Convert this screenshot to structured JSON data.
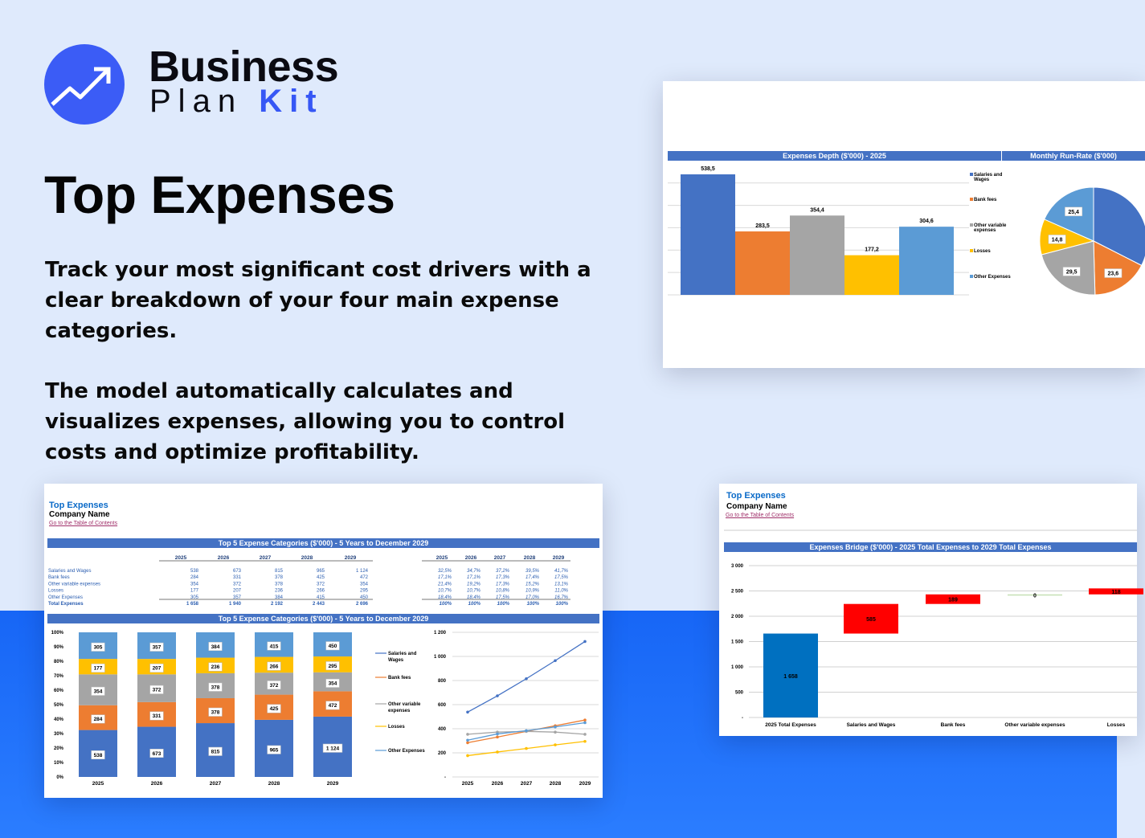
{
  "brand": {
    "line1": "Business",
    "plan": "Plan",
    "kit": "Kit",
    "logo_icon": "trend-arrow-icon",
    "logo_color": "#3b5cf6"
  },
  "hero": {
    "title": "Top Expenses",
    "paragraphs": [
      "Track your most significant cost drivers with a clear breakdown of your four main expense categories.",
      "The model automatically calculates and visualizes expenses, allowing you to control costs and optimize profitability."
    ]
  },
  "colors": {
    "salaries": "#4472c4",
    "bank": "#ed7d31",
    "other_var": "#a5a5a5",
    "losses": "#ffc000",
    "other_exp": "#5b9bd5",
    "header_bar": "#4472c4",
    "increase": "#ff0000",
    "total": "#0070c0",
    "zero": "#c6e0b4",
    "bg_top": "#dfeafc",
    "bg_bottom": "#1766f6"
  },
  "sheet": {
    "title": "Top Expenses",
    "company": "Company Name",
    "link": "Go to the Table of Contents"
  },
  "table": {
    "header": "Top 5 Expense Categories ($'000) - 5 Years to December 2029",
    "years": [
      "2025",
      "2026",
      "2027",
      "2028",
      "2029"
    ],
    "rows": [
      {
        "label": "Salaries and Wages",
        "values": [
          "538",
          "673",
          "815",
          "965",
          "1 124"
        ],
        "pct": [
          "32,5%",
          "34,7%",
          "37,2%",
          "39,5%",
          "41,7%"
        ]
      },
      {
        "label": "Bank fees",
        "values": [
          "284",
          "331",
          "378",
          "425",
          "472"
        ],
        "pct": [
          "17,1%",
          "17,1%",
          "17,3%",
          "17,4%",
          "17,5%"
        ]
      },
      {
        "label": "Other variable expenses",
        "values": [
          "354",
          "372",
          "378",
          "372",
          "354"
        ],
        "pct": [
          "21,4%",
          "19,2%",
          "17,3%",
          "15,2%",
          "13,1%"
        ]
      },
      {
        "label": "Losses",
        "values": [
          "177",
          "207",
          "236",
          "266",
          "295"
        ],
        "pct": [
          "10,7%",
          "10,7%",
          "10,8%",
          "10,9%",
          "11,0%"
        ]
      },
      {
        "label": "Other Expenses",
        "values": [
          "305",
          "357",
          "384",
          "415",
          "450"
        ],
        "pct": [
          "18,4%",
          "18,4%",
          "17,5%",
          "17,0%",
          "16,7%"
        ]
      }
    ],
    "total": {
      "label": "Total Expenses",
      "values": [
        "1 658",
        "1 940",
        "2 192",
        "2 443",
        "2 696"
      ],
      "pct": [
        "100%",
        "100%",
        "100%",
        "100%",
        "100%"
      ]
    }
  },
  "chart_data": [
    {
      "type": "bar",
      "title": "Expenses Depth ($'000) - 2025",
      "categories": [
        "Salaries and Wages",
        "Bank fees",
        "Other variable expenses",
        "Losses",
        "Other Expenses"
      ],
      "values": [
        538.5,
        283.5,
        354.4,
        177.2,
        304.6
      ],
      "labels": [
        "538,5",
        "283,5",
        "354,4",
        "177,2",
        "304,6"
      ],
      "legend": "right",
      "grid": true
    },
    {
      "type": "pie",
      "title": "Monthly Run-Rate ($'000)",
      "categories": [
        "Salaries and Wages",
        "Bank fees",
        "Other variable expenses",
        "Losses",
        "Other Expenses"
      ],
      "values": [
        44.9,
        23.6,
        29.5,
        14.8,
        25.4
      ],
      "labels": [
        "",
        "23,6",
        "29,5",
        "14,8",
        "25,4"
      ]
    },
    {
      "type": "bar",
      "stacked": "percent",
      "title": "Top 5 Expense Categories ($'000) - 5 Years to December 2029",
      "categories": [
        "2025",
        "2026",
        "2027",
        "2028",
        "2029"
      ],
      "series": [
        {
          "name": "Salaries and Wages",
          "values": [
            538,
            673,
            815,
            965,
            1124
          ],
          "labels": [
            "538",
            "673",
            "815",
            "965",
            "1 124"
          ]
        },
        {
          "name": "Bank fees",
          "values": [
            284,
            331,
            378,
            425,
            472
          ],
          "labels": [
            "284",
            "331",
            "378",
            "425",
            "472"
          ]
        },
        {
          "name": "Other variable expenses",
          "values": [
            354,
            372,
            378,
            372,
            354
          ],
          "labels": [
            "354",
            "372",
            "378",
            "372",
            "354"
          ]
        },
        {
          "name": "Losses",
          "values": [
            177,
            207,
            236,
            266,
            295
          ],
          "labels": [
            "177",
            "207",
            "236",
            "266",
            "295"
          ]
        },
        {
          "name": "Other Expenses",
          "values": [
            305,
            357,
            384,
            415,
            450
          ],
          "labels": [
            "305",
            "357",
            "384",
            "415",
            "450"
          ]
        }
      ],
      "yticks": [
        "0%",
        "10%",
        "20%",
        "30%",
        "40%",
        "50%",
        "60%",
        "70%",
        "80%",
        "90%",
        "100%"
      ],
      "legend": "right"
    },
    {
      "type": "line",
      "categories": [
        "2025",
        "2026",
        "2027",
        "2028",
        "2029"
      ],
      "series": [
        {
          "name": "Salaries and Wages",
          "values": [
            538,
            673,
            815,
            965,
            1124
          ]
        },
        {
          "name": "Bank fees",
          "values": [
            284,
            331,
            378,
            425,
            472
          ]
        },
        {
          "name": "Other variable expenses",
          "values": [
            354,
            372,
            378,
            372,
            354
          ]
        },
        {
          "name": "Losses",
          "values": [
            177,
            207,
            236,
            266,
            295
          ]
        },
        {
          "name": "Other Expenses",
          "values": [
            305,
            357,
            384,
            415,
            450
          ]
        }
      ],
      "ylim": [
        0,
        1200
      ],
      "yticks": [
        "-",
        "200",
        "400",
        "600",
        "800",
        "1 000",
        "1 200"
      ],
      "grid": true
    },
    {
      "type": "bar",
      "subtype": "waterfall",
      "title": "Expenses Bridge ($'000) - 2025 Total Expenses to 2029 Total Expenses",
      "categories": [
        "2025 Total Expenses",
        "Salaries and Wages",
        "Bank fees",
        "Other variable expenses",
        "Losses"
      ],
      "values": [
        1658,
        585,
        189,
        0,
        118
      ],
      "labels": [
        "1 658",
        "585",
        "189",
        "0",
        "118"
      ],
      "ylim": [
        0,
        3000
      ],
      "yticks": [
        "-",
        "500",
        "1 000",
        "1 500",
        "2 000",
        "2 500",
        "3 000"
      ],
      "grid": true
    }
  ]
}
